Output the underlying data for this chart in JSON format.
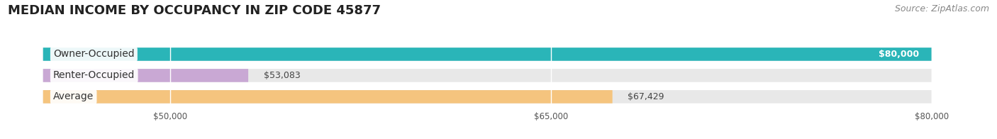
{
  "title": "MEDIAN INCOME BY OCCUPANCY IN ZIP CODE 45877",
  "source": "Source: ZipAtlas.com",
  "categories": [
    "Owner-Occupied",
    "Renter-Occupied",
    "Average"
  ],
  "values": [
    80000,
    53083,
    67429
  ],
  "bar_colors": [
    "#2ab5b8",
    "#c9a8d4",
    "#f5c47e"
  ],
  "bar_bg_color": "#e8e8e8",
  "label_values": [
    "$80,000",
    "$53,083",
    "$67,429"
  ],
  "xmin": 45000,
  "xmax": 80000,
  "xticks": [
    50000,
    65000,
    80000
  ],
  "xtick_labels": [
    "$50,000",
    "$65,000",
    "$80,000"
  ],
  "title_fontsize": 13,
  "source_fontsize": 9,
  "cat_label_fontsize": 10,
  "value_label_fontsize": 9
}
